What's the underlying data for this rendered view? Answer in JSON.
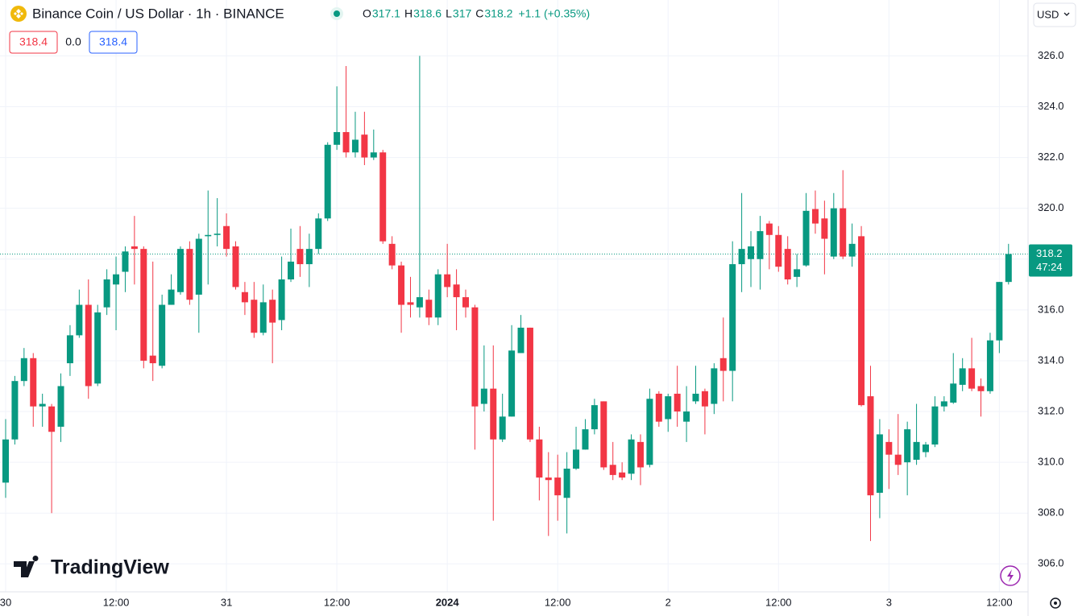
{
  "chart_data": {
    "type": "candlestick",
    "title": "Binance Coin / US Dollar · 1h · BINANCE",
    "ohlc": [
      {
        "label": "O",
        "value": 317.1
      },
      {
        "label": "H",
        "value": 318.6
      },
      {
        "label": "L",
        "value": 317.0
      },
      {
        "label": "C",
        "value": 318.2
      }
    ],
    "change": "+1.1 (+0.35%)",
    "indicators": [
      "318.4",
      "0.0",
      "318.4"
    ],
    "currency": "USD",
    "last_price": 318.2,
    "countdown": "47:24",
    "watermark": "TradingView",
    "up_color": "#089981",
    "down_color": "#f23645",
    "grid": true,
    "categories": [
      "30",
      null,
      null,
      null,
      null,
      null,
      null,
      null,
      null,
      null,
      null,
      null,
      "12:00",
      null,
      null,
      null,
      null,
      null,
      null,
      null,
      null,
      null,
      null,
      null,
      "31",
      null,
      null,
      null,
      null,
      null,
      null,
      null,
      null,
      null,
      null,
      null,
      "12:00",
      null,
      null,
      null,
      null,
      null,
      null,
      null,
      null,
      null,
      null,
      null,
      "2024",
      null,
      null,
      null,
      null,
      null,
      null,
      null,
      null,
      null,
      null,
      null,
      "12:00",
      null,
      null,
      null,
      null,
      null,
      null,
      null,
      null,
      null,
      null,
      null,
      "2",
      null,
      null,
      null,
      null,
      null,
      null,
      null,
      null,
      null,
      null,
      null,
      "12:00",
      null,
      null,
      null,
      null,
      null,
      null,
      null,
      null,
      null,
      null,
      null,
      "3",
      null,
      null,
      null,
      null,
      null,
      null,
      null,
      null,
      null,
      null,
      null,
      "12:00",
      null
    ],
    "open": [
      309.2,
      310.9,
      313.2,
      314.1,
      312.2,
      312.2,
      311.4,
      313.9,
      315.0,
      316.2,
      313.1,
      316.1,
      317.0,
      317.5,
      318.5,
      318.4,
      314.2,
      313.8,
      316.2,
      316.7,
      318.4,
      316.6,
      318.9,
      318.95,
      319.3,
      318.5,
      316.7,
      316.4,
      315.1,
      316.4,
      315.6,
      317.2,
      318.4,
      317.8,
      318.4,
      319.6,
      322.5,
      323.0,
      322.2,
      322.9,
      322.0,
      322.2,
      318.6,
      317.75,
      316.3,
      316.1,
      316.4,
      315.7,
      317.4,
      317.0,
      316.5,
      316.1,
      312.3,
      312.9,
      310.9,
      311.8,
      314.3,
      315.3,
      310.9,
      309.4,
      309.4,
      308.6,
      309.75,
      310.5,
      311.3,
      312.4,
      309.9,
      309.6,
      309.55,
      310.8,
      309.9,
      312.7,
      311.7,
      312.7,
      311.6,
      312.4,
      312.8,
      312.3,
      314.1,
      313.6,
      317.8,
      318.0,
      318.0,
      319.4,
      318.95,
      318.4,
      317.3,
      317.75,
      319.97,
      319.6,
      318.1,
      320.0,
      318.1,
      318.9,
      312.6,
      308.8,
      310.8,
      310.3,
      310.0,
      310.1,
      310.4,
      310.7,
      312.2,
      312.35,
      313.05,
      313.7,
      313.0,
      312.8,
      314.8,
      317.1
    ],
    "high": [
      311.7,
      313.4,
      314.5,
      314.3,
      312.7,
      312.3,
      313.5,
      315.4,
      316.8,
      317.2,
      316.2,
      317.6,
      318.1,
      318.5,
      319.7,
      318.5,
      317.9,
      316.6,
      317.4,
      318.5,
      318.7,
      319.0,
      320.7,
      320.4,
      319.8,
      318.7,
      317.1,
      317.1,
      317.0,
      316.8,
      318.1,
      319.2,
      319.3,
      319.0,
      319.8,
      322.6,
      324.8,
      325.6,
      323.8,
      323.8,
      323.1,
      322.3,
      318.9,
      317.9,
      317.3,
      326.0,
      316.8,
      317.6,
      318.6,
      317.6,
      316.8,
      316.2,
      314.6,
      314.6,
      312.7,
      315.4,
      315.8,
      315.3,
      311.4,
      310.4,
      310.3,
      310.4,
      311.4,
      311.7,
      312.5,
      312.4,
      310.8,
      310.0,
      311.1,
      311.1,
      312.9,
      312.8,
      312.7,
      313.8,
      313.0,
      313.8,
      312.9,
      313.9,
      315.7,
      318.7,
      320.6,
      319.1,
      319.7,
      319.5,
      319.3,
      318.9,
      318.2,
      320.6,
      320.7,
      320.3,
      320.6,
      321.5,
      319.4,
      319.3,
      313.8,
      311.7,
      311.3,
      311.9,
      311.6,
      312.3,
      310.8,
      312.6,
      312.6,
      314.3,
      314.1,
      314.9,
      313.3,
      315.1,
      317.1,
      318.6
    ],
    "low": [
      308.6,
      310.7,
      313.0,
      311.4,
      311.4,
      308.0,
      310.8,
      313.4,
      314.9,
      312.5,
      313.0,
      315.8,
      315.2,
      316.7,
      317.0,
      313.7,
      313.2,
      313.7,
      316.2,
      316.6,
      316.2,
      315.1,
      317.0,
      318.5,
      318.1,
      316.8,
      315.8,
      314.9,
      315.0,
      313.9,
      315.2,
      317.1,
      317.3,
      316.9,
      318.2,
      319.5,
      322.3,
      322.0,
      322.0,
      321.7,
      321.9,
      318.6,
      317.6,
      315.1,
      315.7,
      315.7,
      315.4,
      315.4,
      316.5,
      315.2,
      315.7,
      310.5,
      312.0,
      307.7,
      310.8,
      311.8,
      314.3,
      310.8,
      308.5,
      307.1,
      307.7,
      307.2,
      309.7,
      310.5,
      311.1,
      309.7,
      309.3,
      309.3,
      309.3,
      309.1,
      309.8,
      311.4,
      311.2,
      311.4,
      310.8,
      312.3,
      311.1,
      311.9,
      312.4,
      312.4,
      316.7,
      316.9,
      316.8,
      317.6,
      317.5,
      317.0,
      316.9,
      317.7,
      319.0,
      317.4,
      318.0,
      318.0,
      317.7,
      312.2,
      306.9,
      307.8,
      308.95,
      309.5,
      308.7,
      309.9,
      310.2,
      310.6,
      312.0,
      312.3,
      312.8,
      312.8,
      311.8,
      312.7,
      314.3,
      317.0
    ],
    "close": [
      310.9,
      313.2,
      314.1,
      312.2,
      312.3,
      311.2,
      313.0,
      315.0,
      316.2,
      313.0,
      315.9,
      317.2,
      317.4,
      318.3,
      318.4,
      314.0,
      313.9,
      316.2,
      316.8,
      318.4,
      316.4,
      318.8,
      318.95,
      319.0,
      318.4,
      316.9,
      316.3,
      315.1,
      316.3,
      315.5,
      317.2,
      317.9,
      317.8,
      318.4,
      319.6,
      322.5,
      323.0,
      322.2,
      322.7,
      322.0,
      322.2,
      318.7,
      317.75,
      316.2,
      316.2,
      316.5,
      315.7,
      317.4,
      316.9,
      316.5,
      316.1,
      312.2,
      312.9,
      310.9,
      311.8,
      314.4,
      315.3,
      310.9,
      309.4,
      309.3,
      308.7,
      309.75,
      310.5,
      311.3,
      312.25,
      309.8,
      309.5,
      309.4,
      310.9,
      309.8,
      312.5,
      311.6,
      312.6,
      312.0,
      312.0,
      312.7,
      312.2,
      313.7,
      313.6,
      317.8,
      318.4,
      318.5,
      319.1,
      318.95,
      317.7,
      317.2,
      317.6,
      319.9,
      319.4,
      318.8,
      320.0,
      318.1,
      318.6,
      312.25,
      308.7,
      311.1,
      310.3,
      309.9,
      311.3,
      310.8,
      310.7,
      312.2,
      312.4,
      313.1,
      313.7,
      312.9,
      312.8,
      314.8,
      317.1,
      318.2
    ],
    "ylim": [
      304.9,
      328.2
    ],
    "yticks": [
      {
        "value": 306,
        "label": "306.0"
      },
      {
        "value": 308,
        "label": "308.0"
      },
      {
        "value": 310,
        "label": "310.0"
      },
      {
        "value": 312,
        "label": "312.0"
      },
      {
        "value": 314,
        "label": "314.0"
      },
      {
        "value": 316,
        "label": "316.0"
      },
      {
        "value": 318,
        "label": "318.0"
      },
      {
        "value": 320,
        "label": "320.0"
      },
      {
        "value": 322,
        "label": "322.0"
      },
      {
        "value": 324,
        "label": "324.0"
      },
      {
        "value": 326,
        "label": "326.0"
      }
    ]
  }
}
